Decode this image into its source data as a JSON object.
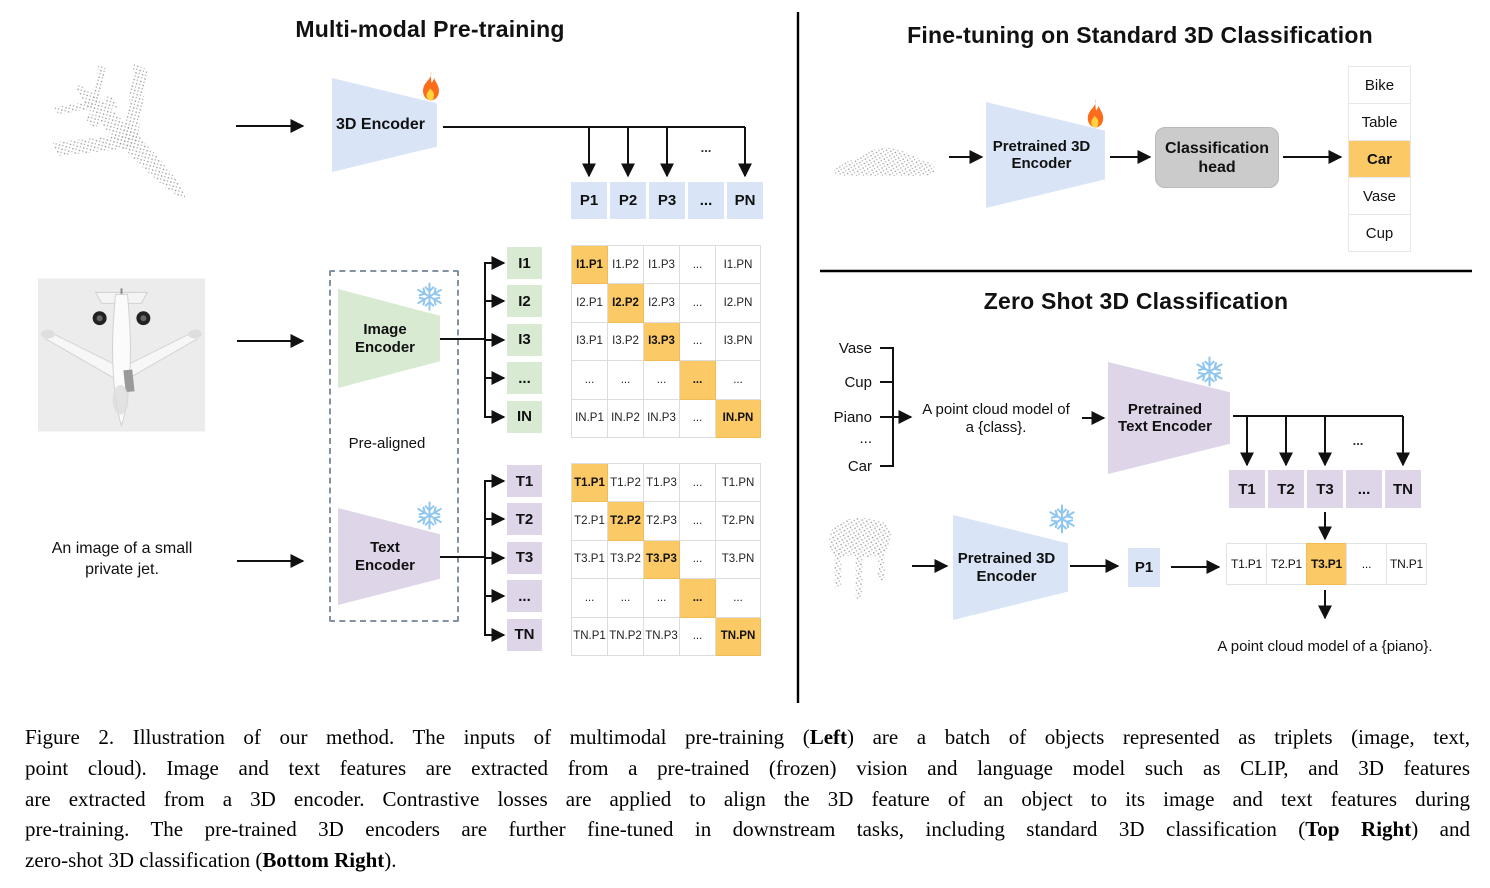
{
  "colors": {
    "encoder_blue": "#d9e5f7",
    "encoder_green": "#d9ead3",
    "encoder_purple": "#ded5e8",
    "highlight_orange": "#fbca66",
    "head_gray": "#cbcbcb",
    "point_cloud_gray": "#9f9f9f"
  },
  "left": {
    "title": "Multi-modal Pre-training",
    "encoder_3d": "3D Encoder",
    "image_encoder": "Image Encoder",
    "text_encoder": "Text Encoder",
    "pre_aligned": "Pre-aligned",
    "image_caption": "An image of a small private jet.",
    "fan_dots": "...",
    "p_row": [
      "P1",
      "P2",
      "P3",
      "...",
      "PN"
    ],
    "i_labels": [
      "I1",
      "I2",
      "I3",
      "...",
      "IN"
    ],
    "t_labels": [
      "T1",
      "T2",
      "T3",
      "...",
      "TN"
    ],
    "i_matrix": [
      [
        "I1.P1",
        "I1.P2",
        "I1.P3",
        "...",
        "I1.PN"
      ],
      [
        "I2.P1",
        "I2.P2",
        "I2.P3",
        "...",
        "I2.PN"
      ],
      [
        "I3.P1",
        "I3.P2",
        "I3.P3",
        "...",
        "I3.PN"
      ],
      [
        "...",
        "...",
        "...",
        "...",
        "..."
      ],
      [
        "IN.P1",
        "IN.P2",
        "IN.P3",
        "...",
        "IN.PN"
      ]
    ],
    "t_matrix": [
      [
        "T1.P1",
        "T1.P2",
        "T1.P3",
        "...",
        "T1.PN"
      ],
      [
        "T2.P1",
        "T2.P2",
        "T2.P3",
        "...",
        "T2.PN"
      ],
      [
        "T3.P1",
        "T3.P2",
        "T3.P3",
        "...",
        "T3.PN"
      ],
      [
        "...",
        "...",
        "...",
        "...",
        "..."
      ],
      [
        "TN.P1",
        "TN.P2",
        "TN.P3",
        "...",
        "TN.PN"
      ]
    ]
  },
  "top_right": {
    "title": "Fine-tuning on Standard 3D Classification",
    "encoder": "Pretrained 3D Encoder",
    "head": "Classification head",
    "classes": [
      "Bike",
      "Table",
      "Car",
      "Vase",
      "Cup"
    ],
    "highlighted_class": "Car",
    "highlight_index": 2
  },
  "bottom_right": {
    "title": "Zero Shot 3D Classification",
    "class_list": [
      "Vase",
      "Cup",
      "Piano",
      "...",
      "Car"
    ],
    "prompt_line1": "A point cloud model of",
    "prompt_line2": "a {class}.",
    "text_encoder": "Pretrained Text Encoder",
    "encoder_3d": "Pretrained 3D Encoder",
    "p_cell": "P1",
    "fan_dots": "...",
    "t_row": [
      "T1",
      "T2",
      "T3",
      "...",
      "TN"
    ],
    "sim_row": [
      "T1.P1",
      "T2.P1",
      "T3.P1",
      "...",
      "TN.P1"
    ],
    "sim_highlight_index": 2,
    "result": "A point cloud model of a {piano}."
  },
  "caption": {
    "lines": [
      {
        "justify": true,
        "segments": [
          {
            "t": "Figure 2. Illustration of our method. The inputs of multimodal pre-training ("
          },
          {
            "t": "Left",
            "b": true
          },
          {
            "t": ") are a batch of objects represented as triplets (image, text,"
          }
        ]
      },
      {
        "justify": true,
        "segments": [
          {
            "t": "point cloud). Image and text features are extracted from a pre-trained (frozen) vision and language model such as CLIP, and 3D features"
          }
        ]
      },
      {
        "justify": true,
        "segments": [
          {
            "t": "are extracted from a 3D encoder. Contrastive losses are applied to align the 3D feature of an object to its image and text features during"
          }
        ]
      },
      {
        "justify": true,
        "segments": [
          {
            "t": "pre-training. The pre-trained 3D encoders are further fine-tuned in downstream tasks, including standard 3D classification ("
          },
          {
            "t": "Top Right",
            "b": true
          },
          {
            "t": ") and"
          }
        ]
      },
      {
        "justify": false,
        "segments": [
          {
            "t": "zero-shot 3D classification ("
          },
          {
            "t": "Bottom Right",
            "b": true
          },
          {
            "t": ")."
          }
        ]
      }
    ]
  }
}
